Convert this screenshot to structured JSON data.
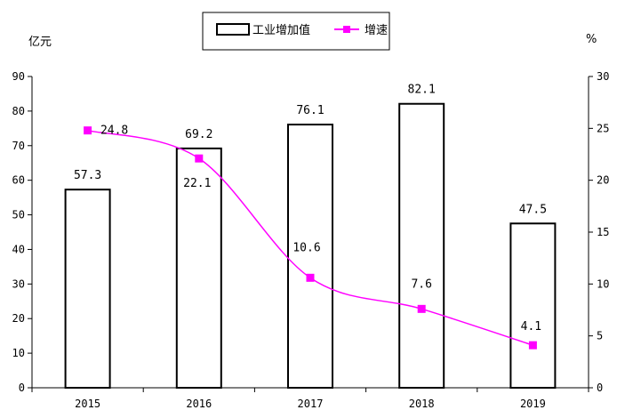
{
  "chart_data": {
    "type": "bar+line",
    "categories": [
      "2015",
      "2016",
      "2017",
      "2018",
      "2019"
    ],
    "series": [
      {
        "name": "工业增加值",
        "type": "bar",
        "axis": "left",
        "values": [
          57.3,
          69.2,
          76.1,
          82.1,
          47.5
        ],
        "labels": [
          "57.3",
          "69.2",
          "76.1",
          "82.1",
          "47.5"
        ]
      },
      {
        "name": "增速",
        "type": "line",
        "axis": "right",
        "values": [
          24.8,
          22.1,
          10.6,
          7.6,
          4.1
        ],
        "labels": [
          "24.8",
          "22.1",
          "10.6",
          "7.6",
          "4.1"
        ],
        "color": "#ff00ff"
      }
    ],
    "y_left": {
      "unit": "亿元",
      "min": 0,
      "max": 90,
      "step": 10,
      "ticks": [
        "0",
        "10",
        "20",
        "30",
        "40",
        "50",
        "60",
        "70",
        "80",
        "90"
      ]
    },
    "y_right": {
      "unit": "%",
      "min": 0,
      "max": 30,
      "step": 5,
      "ticks": [
        "0",
        "5",
        "10",
        "15",
        "20",
        "25",
        "30"
      ]
    },
    "legend": {
      "position": "top-center",
      "items": [
        "工业增加值",
        "增速"
      ]
    },
    "grid": false
  }
}
